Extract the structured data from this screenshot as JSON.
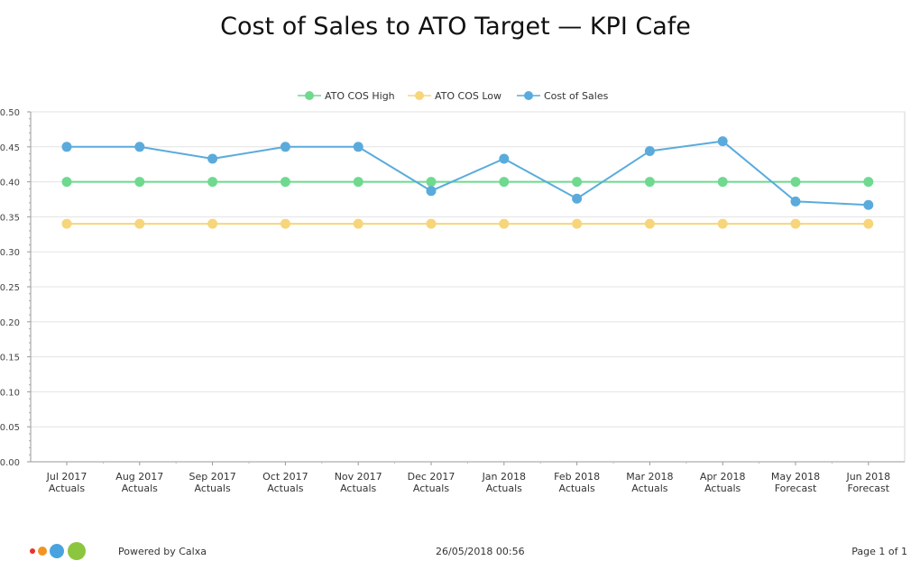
{
  "chart_data": {
    "type": "line",
    "title": "Cost of Sales to ATO Target — KPI Cafe",
    "categories": [
      [
        "Jul 2017",
        "Actuals"
      ],
      [
        "Aug 2017",
        "Actuals"
      ],
      [
        "Sep 2017",
        "Actuals"
      ],
      [
        "Oct 2017",
        "Actuals"
      ],
      [
        "Nov 2017",
        "Actuals"
      ],
      [
        "Dec 2017",
        "Actuals"
      ],
      [
        "Jan 2018",
        "Actuals"
      ],
      [
        "Feb 2018",
        "Actuals"
      ],
      [
        "Mar 2018",
        "Actuals"
      ],
      [
        "Apr 2018",
        "Actuals"
      ],
      [
        "May 2018",
        "Forecast"
      ],
      [
        "Jun 2018",
        "Forecast"
      ]
    ],
    "series": [
      {
        "name": "ATO COS High",
        "color": "#6fd98f",
        "values": [
          0.4,
          0.4,
          0.4,
          0.4,
          0.4,
          0.4,
          0.4,
          0.4,
          0.4,
          0.4,
          0.4,
          0.4
        ]
      },
      {
        "name": "ATO COS Low",
        "color": "#f7d57a",
        "values": [
          0.34,
          0.34,
          0.34,
          0.34,
          0.34,
          0.34,
          0.34,
          0.34,
          0.34,
          0.34,
          0.34,
          0.34
        ]
      },
      {
        "name": "Cost of Sales",
        "color": "#5aabdc",
        "values": [
          0.45,
          0.45,
          0.433,
          0.45,
          0.45,
          0.387,
          0.433,
          0.376,
          0.444,
          0.458,
          0.372,
          0.367
        ]
      }
    ],
    "ylim": [
      0,
      0.5
    ],
    "yticks": [
      "0.00",
      "0.05",
      "0.10",
      "0.15",
      "0.20",
      "0.25",
      "0.30",
      "0.35",
      "0.40",
      "0.45",
      "0.50"
    ],
    "grid": true,
    "legend": "top-center",
    "xlabel": "",
    "ylabel": ""
  },
  "footer": {
    "powered_by": "Powered by Calxa",
    "timestamp": "26/05/2018 00:56",
    "page": "Page 1 of 1"
  },
  "logo": {
    "name": "calxa-logo",
    "colors": [
      "#e8322c",
      "#f39322",
      "#4aa3df",
      "#8cc63f"
    ]
  }
}
